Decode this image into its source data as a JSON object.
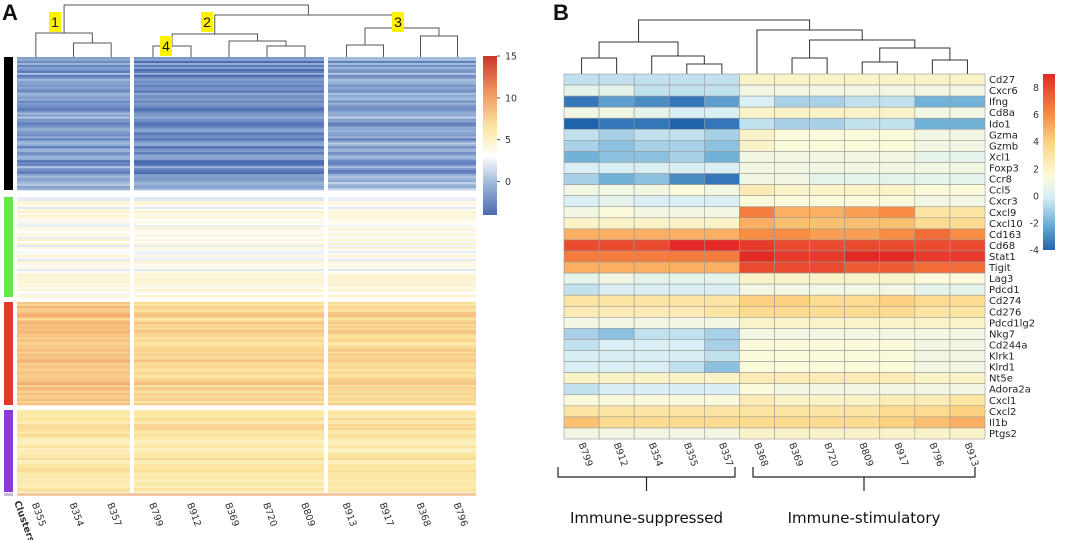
{
  "chart_data": [
    {
      "panel": "A",
      "type": "heatmap",
      "clusters_label": "Clusters",
      "cluster_tags": [
        "1",
        "2",
        "3",
        "4"
      ],
      "samples": [
        "B355",
        "B354",
        "B357",
        "B799",
        "B912",
        "B369",
        "B720",
        "B809",
        "B913",
        "B917",
        "B368",
        "B796"
      ],
      "column_groups": [
        [
          "B355",
          "B354",
          "B357"
        ],
        [
          "B799",
          "B912",
          "B369",
          "B720",
          "B809"
        ],
        [
          "B913",
          "B917",
          "B368",
          "B796"
        ]
      ],
      "row_clusters": [
        {
          "color": "#000000",
          "level": "low"
        },
        {
          "color": "#66e64a",
          "level": "mid-low"
        },
        {
          "color": "#e03a2a",
          "level": "high"
        },
        {
          "color": "#8c3ad6",
          "level": "mid-high"
        }
      ],
      "colorbar": {
        "min": -4,
        "max": 15,
        "ticks": [
          15,
          10,
          5,
          0
        ]
      }
    },
    {
      "panel": "B",
      "type": "heatmap",
      "samples": [
        "B799",
        "B912",
        "B354",
        "B355",
        "B357",
        "B368",
        "B369",
        "B720",
        "B809",
        "B917",
        "B796",
        "B913"
      ],
      "groups": [
        {
          "label": "Immune-suppressed",
          "samples": [
            "B799",
            "B912",
            "B354",
            "B355",
            "B357"
          ]
        },
        {
          "label": "Immune-stimulatory",
          "samples": [
            "B368",
            "B369",
            "B720",
            "B809",
            "B917",
            "B796",
            "B913"
          ]
        }
      ],
      "genes": [
        "Cd27",
        "Cxcr6",
        "Ifng",
        "Cd8a",
        "Ido1",
        "Gzma",
        "Gzmb",
        "Xcl1",
        "Foxp3",
        "Ccr8",
        "Ccl5",
        "Cxcr3",
        "Cxcl9",
        "Cxcl10",
        "Cd163",
        "Cd68",
        "Stat1",
        "Tigit",
        "Lag3",
        "Pdcd1",
        "Cd274",
        "Cd276",
        "Pdcd1lg2",
        "Nkg7",
        "Cd244a",
        "Klrk1",
        "Klrd1",
        "Nt5e",
        "Adora2a",
        "Cxcl1",
        "Cxcl2",
        "Il1b",
        "Ptgs2"
      ],
      "values": [
        [
          -0.5,
          -0.5,
          -0.5,
          -0.5,
          -0.5,
          2,
          2,
          2,
          2,
          2,
          2,
          2
        ],
        [
          0.5,
          0.5,
          -0.5,
          -0.5,
          -0.5,
          1,
          1,
          1,
          1,
          1,
          1,
          1
        ],
        [
          -3.5,
          -2.5,
          -3,
          -3.5,
          -2.5,
          0,
          -1,
          -1,
          -0.5,
          -0.5,
          -2,
          -2
        ],
        [
          1,
          1,
          0.5,
          0,
          0,
          2,
          2,
          2,
          2,
          2,
          1,
          1
        ],
        [
          -4,
          -3.5,
          -3.5,
          -4,
          -3.5,
          -0.5,
          -1,
          -1,
          -0.5,
          -0.5,
          -2,
          -2
        ],
        [
          -0.5,
          -1,
          -0.5,
          -0.5,
          -1,
          2,
          1.5,
          1.5,
          1.5,
          1.5,
          1,
          1
        ],
        [
          -1,
          -1.5,
          -1,
          -1,
          -1.5,
          2,
          1.5,
          1.5,
          1.5,
          1.5,
          1,
          1
        ],
        [
          -2,
          -1.5,
          -1.5,
          -1,
          -2,
          1,
          1,
          1,
          1,
          1,
          0.5,
          0.5
        ],
        [
          0,
          0,
          0,
          0,
          0,
          1,
          1,
          1,
          1,
          1,
          1,
          1
        ],
        [
          -1,
          -2,
          -1.5,
          -3,
          -3.5,
          1,
          1,
          0.5,
          0.5,
          0.5,
          0.5,
          0.5
        ],
        [
          1,
          1,
          1,
          1.5,
          1,
          2.5,
          2,
          2,
          2,
          2,
          1.5,
          1.5
        ],
        [
          0,
          0.5,
          0,
          0,
          0,
          1.5,
          1.5,
          1.5,
          1.5,
          1.5,
          1,
          1
        ],
        [
          1,
          1.5,
          1,
          1,
          1,
          6.5,
          5,
          5,
          5.5,
          6,
          3,
          3
        ],
        [
          2,
          2,
          2,
          2,
          2,
          5,
          4.5,
          4.5,
          4.5,
          4.5,
          3.5,
          3.5
        ],
        [
          5,
          5,
          5,
          5,
          5,
          6,
          6,
          5.5,
          5.5,
          6,
          7,
          6
        ],
        [
          8,
          8,
          8,
          9,
          9,
          8.5,
          8,
          8,
          8,
          8,
          8,
          8
        ],
        [
          6.5,
          6.5,
          6.5,
          6.5,
          6.5,
          9,
          8.5,
          8.5,
          9,
          9,
          8.5,
          8.5
        ],
        [
          5,
          5,
          5,
          5,
          5,
          8,
          8,
          8,
          7.5,
          7.5,
          7,
          7
        ],
        [
          0.5,
          1,
          0.5,
          0.5,
          0.5,
          2,
          2,
          2,
          2,
          2,
          1.5,
          1.5
        ],
        [
          -0.5,
          0,
          0,
          0,
          0,
          1,
          1,
          1,
          1,
          1,
          0.5,
          0.5
        ],
        [
          3,
          3,
          3,
          3,
          3,
          4,
          4,
          3.5,
          3.5,
          4,
          3.5,
          3.5
        ],
        [
          2.5,
          2.5,
          2.5,
          2.5,
          3,
          3.5,
          3.5,
          3.5,
          3.5,
          3.5,
          3,
          3
        ],
        [
          1,
          1,
          1,
          1,
          1,
          2,
          2,
          2,
          2,
          2,
          2,
          2
        ],
        [
          -1,
          -1.5,
          -0.5,
          -0.5,
          -1,
          1,
          1,
          1,
          1,
          1,
          1,
          1
        ],
        [
          -0.5,
          0,
          0,
          0,
          -1,
          1.5,
          1.5,
          1.5,
          1.5,
          1.5,
          1,
          1
        ],
        [
          0,
          0,
          0,
          0,
          -0.5,
          1.5,
          1.5,
          1.5,
          1.5,
          1.5,
          1,
          1
        ],
        [
          0,
          0,
          0,
          -0.5,
          -1.5,
          1.5,
          1.5,
          1.5,
          1.5,
          1.5,
          1,
          1
        ],
        [
          2,
          2,
          2,
          2,
          2,
          2.5,
          2.5,
          2.5,
          2.5,
          2.5,
          2,
          2
        ],
        [
          -0.5,
          0,
          0,
          0,
          0,
          1.5,
          1,
          1,
          1,
          1,
          1,
          1
        ],
        [
          1.5,
          1.5,
          1.5,
          1.5,
          1.5,
          2.5,
          2,
          2,
          2,
          2.5,
          2.5,
          3
        ],
        [
          3,
          3,
          3,
          3,
          3,
          3,
          3,
          3,
          3,
          3.5,
          3.5,
          4
        ],
        [
          4.5,
          3.5,
          3.5,
          3.5,
          3.5,
          3.5,
          3.5,
          3.5,
          3.5,
          4,
          4.5,
          5
        ],
        [
          1,
          1,
          1,
          1,
          1,
          2,
          2,
          2,
          2,
          2,
          2,
          2
        ]
      ],
      "colorbar": {
        "min": -4,
        "max": 9,
        "ticks": [
          8,
          6,
          4,
          2,
          0,
          -2,
          -4
        ]
      }
    }
  ]
}
